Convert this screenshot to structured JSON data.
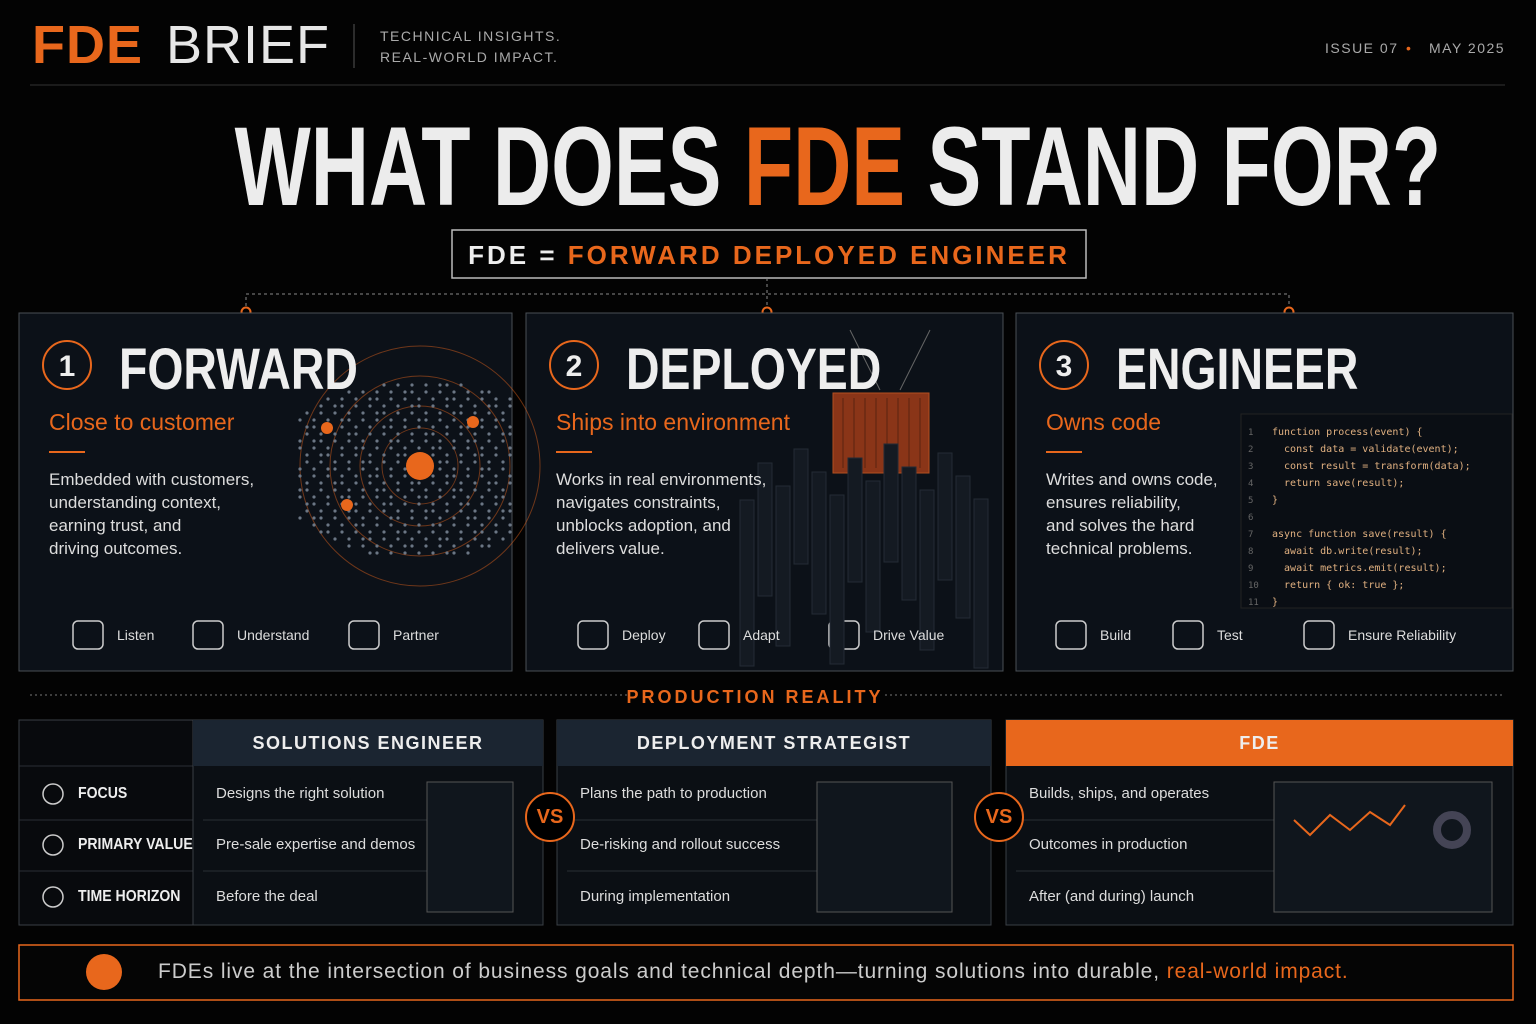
{
  "header": {
    "brand_accent": "FDE",
    "brand": "BRIEF",
    "tagline": [
      "TECHNICAL INSIGHTS.",
      "REAL-WORLD IMPACT."
    ],
    "issue": "ISSUE 07",
    "separator": "•",
    "date": "MAY 2025"
  },
  "title": {
    "before": "WHAT DOES",
    "highlight": "FDE",
    "after": "STAND FOR?"
  },
  "definition": {
    "left": "FDE =",
    "right": "FORWARD DEPLOYED ENGINEER"
  },
  "cards": [
    {
      "number": "1",
      "word": "FORWARD",
      "subtitle": "Close to customer",
      "body": [
        "Embedded with customers,",
        "understanding context,",
        "earning trust, and",
        "driving outcomes."
      ],
      "icons": [
        "Listen",
        "Understand",
        "Partner"
      ]
    },
    {
      "number": "2",
      "word": "DEPLOYED",
      "subtitle": "Ships into environment",
      "body": [
        "Works in real environments,",
        "navigates constraints,",
        "unblocks adoption, and",
        "delivers value."
      ],
      "icons": [
        "Deploy",
        "Adapt",
        "Drive Value"
      ]
    },
    {
      "number": "3",
      "word": "ENGINEER",
      "subtitle": "Owns code",
      "body": [
        "Writes and owns code,",
        "ensures reliability,",
        "and solves the hard",
        "technical problems."
      ],
      "icons": [
        "Build",
        "Test",
        "Ensure Reliability"
      ],
      "code": [
        {
          "n": "1",
          "text": "function process(event) {"
        },
        {
          "n": "2",
          "text": "  const data = validate(event);"
        },
        {
          "n": "3",
          "text": "  const result = transform(data);"
        },
        {
          "n": "4",
          "text": "  return save(result);"
        },
        {
          "n": "5",
          "text": "}"
        },
        {
          "n": "6"
        },
        {
          "n": "7",
          "text": "async function save(result) {"
        },
        {
          "n": "8",
          "text": "  await db.write(result);"
        },
        {
          "n": "9",
          "text": "  await metrics.emit(result);"
        },
        {
          "n": "10",
          "text": "  return { ok: true };"
        },
        {
          "n": "11",
          "text": "}"
        }
      ]
    }
  ],
  "section_label": "PRODUCTION REALITY",
  "comparison": {
    "row_labels": [
      "FOCUS",
      "PRIMARY VALUE",
      "TIME HORIZON"
    ],
    "vs": "VS",
    "columns": [
      {
        "header": "SOLUTIONS ENGINEER",
        "rows": [
          "Designs the right solution",
          "Pre-sale expertise and demos",
          "Before the deal"
        ]
      },
      {
        "header": "DEPLOYMENT STRATEGIST",
        "rows": [
          "Plans the path to production",
          "De-risking and rollout success",
          "During implementation"
        ]
      },
      {
        "header": "FDE",
        "rows": [
          "Builds, ships, and operates",
          "Outcomes in production",
          "After (and during) launch"
        ]
      }
    ]
  },
  "footer": {
    "text": "FDEs live at the intersection of business goals and technical depth—turning solutions into durable,",
    "highlight": "real-world impact."
  }
}
